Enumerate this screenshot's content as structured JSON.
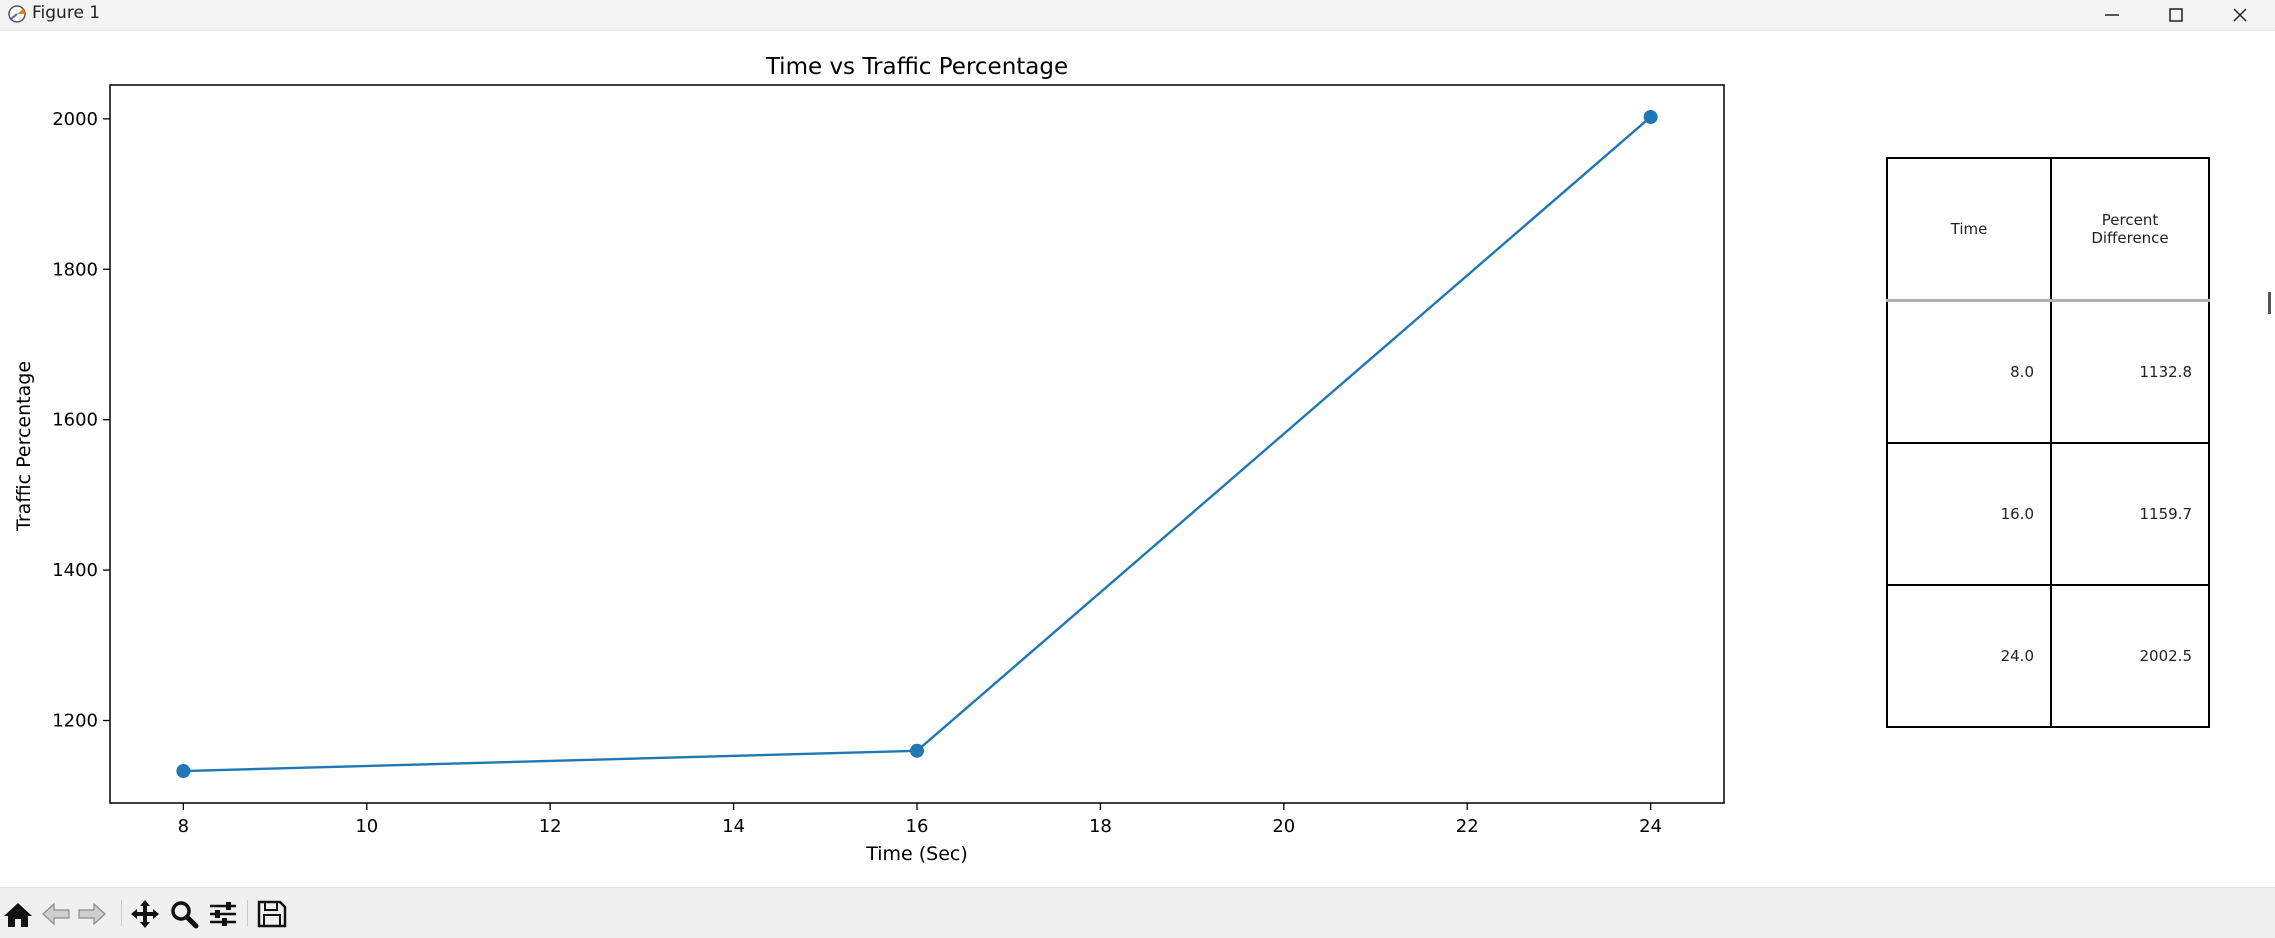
{
  "window": {
    "title": "Figure 1"
  },
  "chart_data": {
    "type": "line",
    "title": "Time vs Traffic Percentage",
    "xlabel": "Time (Sec)",
    "ylabel": "Traffic Percentage",
    "x": [
      8,
      16,
      24
    ],
    "series": [
      {
        "values": [
          1132.8,
          1159.7,
          2002.5
        ],
        "color": "#1f77b4",
        "marker": "circle"
      }
    ],
    "xlim": [
      7.2,
      24.8
    ],
    "ylim": [
      1090.3,
      2045.0
    ],
    "xticks": [
      8,
      10,
      12,
      14,
      16,
      18,
      20,
      22,
      24
    ],
    "yticks": [
      1200,
      1400,
      1600,
      1800,
      2000
    ],
    "grid": false
  },
  "table": {
    "headers": [
      "Time",
      "Percent Difference"
    ],
    "rows": [
      [
        "8.0",
        "1132.8"
      ],
      [
        "16.0",
        "1159.7"
      ],
      [
        "24.0",
        "2002.5"
      ]
    ]
  },
  "toolbar": {
    "buttons": [
      "home-icon",
      "back-arrow-icon",
      "forward-arrow-icon",
      "pan-icon",
      "zoom-icon",
      "subplots-config-icon",
      "save-icon"
    ]
  }
}
